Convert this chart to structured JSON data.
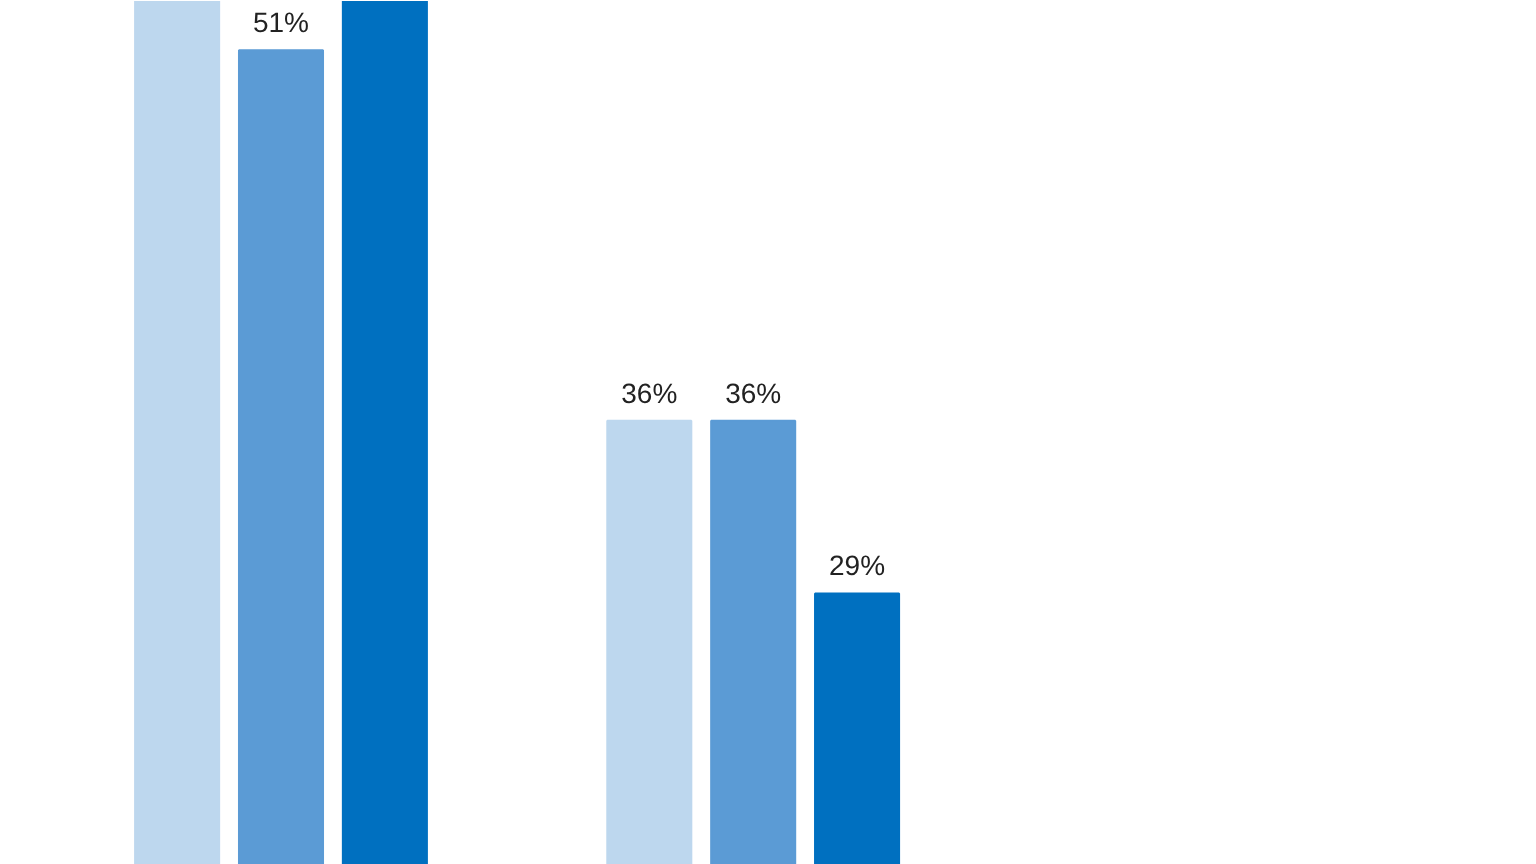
{
  "chart_data": {
    "type": "bar",
    "categories": [
      null,
      null
    ],
    "ylim": [
      18,
      53
    ],
    "tick_labels": false,
    "grid": false,
    "series": [
      {
        "color": "#bdd7ee",
        "values": [
          53,
          36
        ],
        "value_labels": [
          null,
          "36%"
        ]
      },
      {
        "color": "#5b9bd5",
        "values": [
          51,
          36
        ],
        "value_labels": [
          "51%",
          "36%"
        ]
      },
      {
        "color": "#0070c0",
        "values": [
          53,
          29
        ],
        "value_labels": [
          null,
          "29%"
        ]
      }
    ]
  }
}
